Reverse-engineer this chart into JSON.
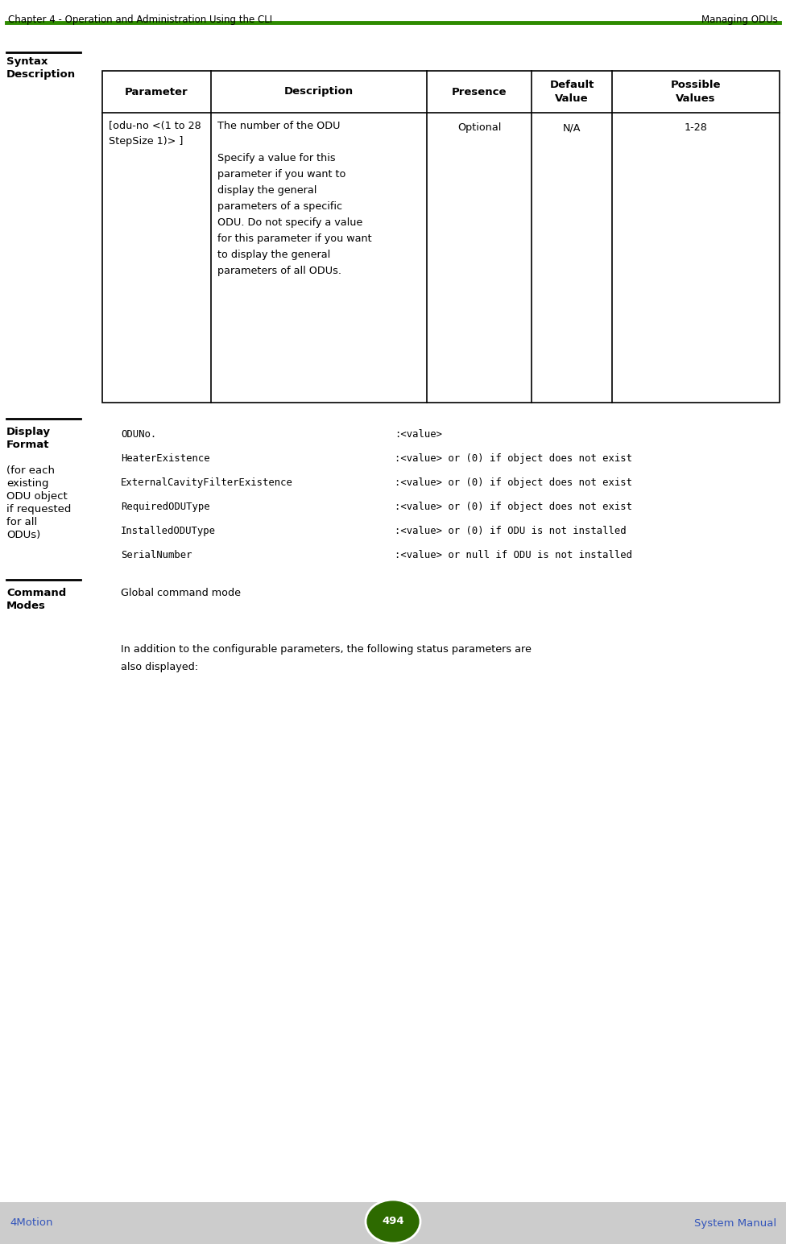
{
  "header_left": "Chapter 4 - Operation and Administration Using the CLI",
  "header_right": "Managing ODUs",
  "header_line_color": "#2E8B00",
  "footer_left": "4Motion",
  "footer_center": "494",
  "footer_right": "System Manual",
  "footer_bg": "#CCCCCC",
  "footer_circle_color": "#2D6A00",
  "footer_text_color": "#3355BB",
  "bg_color": "#FFFFFF",
  "text_color": "#000000",
  "table_border_color": "#000000",
  "section_label_syntax": "Syntax\nDescription",
  "table_headers": [
    "Parameter",
    "Description",
    "Presence",
    "Default\nValue",
    "Possible\nValues"
  ],
  "param_col": "[odu-no <(1 to 28\nStepSize 1)> ]",
  "desc_col_lines": [
    "The number of the ODU",
    "",
    "Specify a value for this",
    "parameter if you want to",
    "display the general",
    "parameters of a specific",
    "ODU. Do not specify a value",
    "for this parameter if you want",
    "to display the general",
    "parameters of all ODUs."
  ],
  "presence_col": "Optional",
  "default_col": "N/A",
  "possible_col": "1-28",
  "display_format_label_lines": [
    "Display",
    "Format",
    "",
    "(for each",
    "existing",
    "ODU object",
    "if requested",
    "for all",
    "ODUs)"
  ],
  "display_format_rows": [
    [
      "ODUNo.",
      ":<value>"
    ],
    [
      "HeaterExistence",
      ":<value> or (0) if object does not exist"
    ],
    [
      "ExternalCavityFilterExistence",
      ":<value> or (0) if object does not exist"
    ],
    [
      "RequiredODUType",
      ":<value> or (0) if object does not exist"
    ],
    [
      "InstalledODUType",
      ":<value> or (0) if ODU is not installed"
    ],
    [
      "SerialNumber",
      ":<value> or null if ODU is not installed"
    ]
  ],
  "command_modes_label": "Command\nModes",
  "command_modes_value": "Global command mode",
  "footer_note_lines": [
    "In addition to the configurable parameters, the following status parameters are",
    "also displayed:"
  ]
}
